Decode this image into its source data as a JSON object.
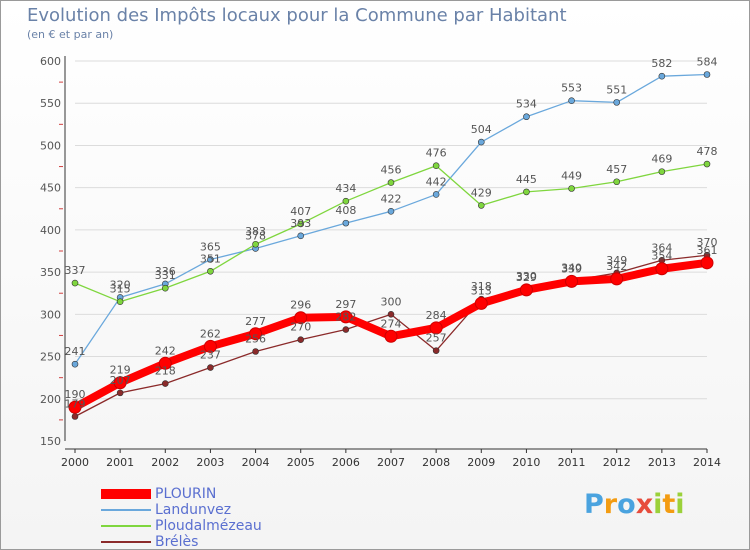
{
  "title": "Evolution des Impôts locaux pour la Commune par Habitant",
  "subtitle": "(en € et par an)",
  "logo": {
    "letters": [
      "P",
      "r",
      "o",
      "x",
      "i",
      "t",
      "i"
    ],
    "colors": [
      "#4aa3df",
      "#f39c12",
      "#4aa3df",
      "#e74c3c",
      "#9bd13a",
      "#f39c12",
      "#9bd13a"
    ]
  },
  "chart_data": {
    "type": "line",
    "x": [
      "2000",
      "2001",
      "2002",
      "2003",
      "2004",
      "2005",
      "2006",
      "2007",
      "2008",
      "2009",
      "2010",
      "2011",
      "2012",
      "2013",
      "2014"
    ],
    "ylim": [
      150,
      600
    ],
    "yticks": [
      "150",
      "200",
      "250",
      "300",
      "350",
      "400",
      "450",
      "500",
      "550",
      "600"
    ],
    "grid": "horizontal",
    "legend": "bottom-left",
    "series": [
      {
        "name": "PLOURIN",
        "color": "#ff0000",
        "values": [
          190,
          219,
          242,
          262,
          277,
          296,
          297,
          274,
          284,
          313,
          329,
          339,
          342,
          354,
          361
        ]
      },
      {
        "name": "Landunvez",
        "color": "#6aa8dc",
        "values": [
          241,
          320,
          336,
          365,
          378,
          393,
          408,
          422,
          442,
          504,
          534,
          553,
          551,
          582,
          584
        ]
      },
      {
        "name": "Ploudalmézeau",
        "color": "#7fd63e",
        "values": [
          337,
          315,
          331,
          351,
          383,
          407,
          434,
          456,
          476,
          429,
          445,
          449,
          457,
          469,
          478
        ]
      },
      {
        "name": "Brélès",
        "color": "#8b2a2a",
        "values": [
          179,
          207,
          218,
          237,
          256,
          270,
          282,
          300,
          257,
          318,
          330,
          340,
          349,
          364,
          370
        ]
      }
    ]
  }
}
